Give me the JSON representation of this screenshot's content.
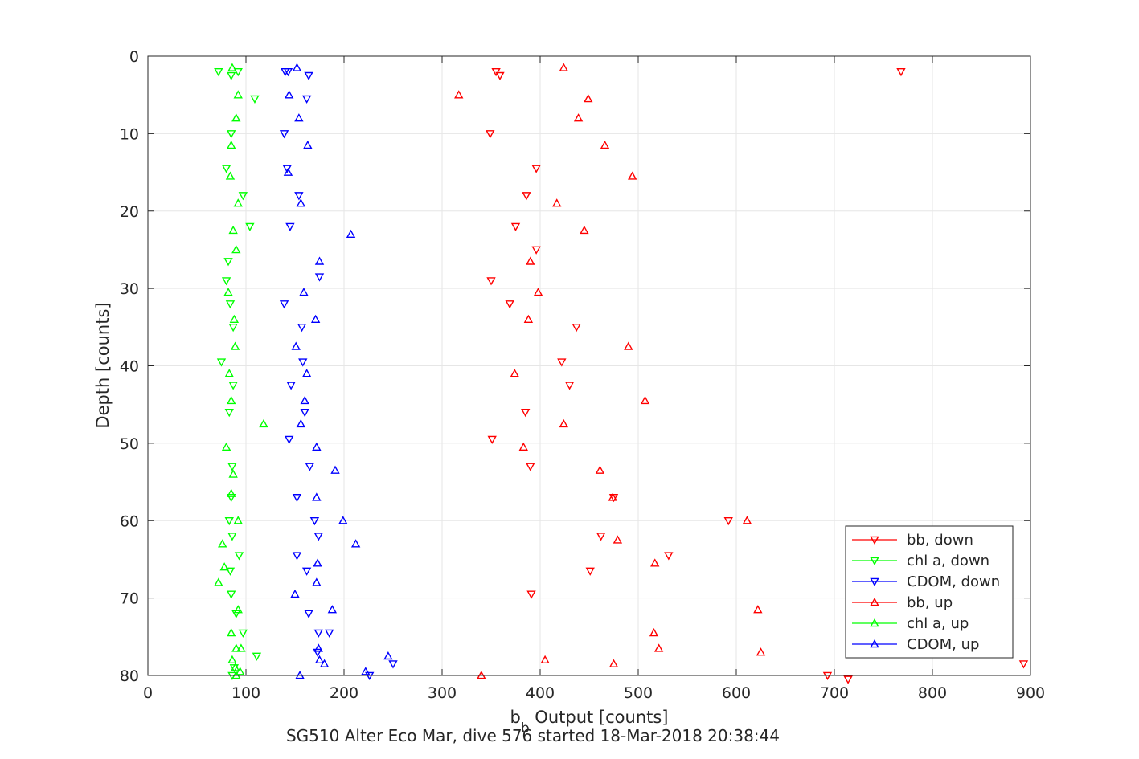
{
  "chart_data": {
    "type": "scatter",
    "title": "",
    "xlabel": "b",
    "xlabel_subscript": "b",
    "xlabel_suffix": " Output [counts]",
    "ylabel": "Depth [counts]",
    "caption": "SG510 Alter Eco Mar, dive 576 started 18-Mar-2018 20:38:44",
    "xlim": [
      0,
      900
    ],
    "ylim": [
      0,
      80
    ],
    "y_reversed": true,
    "grid": true,
    "xticks": [
      0,
      100,
      200,
      300,
      400,
      500,
      600,
      700,
      800,
      900
    ],
    "yticks": [
      0,
      10,
      20,
      30,
      40,
      50,
      60,
      70,
      80
    ],
    "legend_position": "bottom-right",
    "series": [
      {
        "name": "bb, down",
        "color": "#ff0000",
        "marker": "triangle-down",
        "points": [
          [
            355,
            2
          ],
          [
            359,
            2.5
          ],
          [
            768,
            2
          ],
          [
            349,
            10
          ],
          [
            396,
            14.5
          ],
          [
            386,
            18
          ],
          [
            375,
            22
          ],
          [
            396,
            25
          ],
          [
            350,
            29
          ],
          [
            369,
            32
          ],
          [
            437,
            35
          ],
          [
            422,
            39.5
          ],
          [
            430,
            42.5
          ],
          [
            385,
            46
          ],
          [
            351,
            49.5
          ],
          [
            390,
            53
          ],
          [
            475,
            57
          ],
          [
            592,
            60
          ],
          [
            462,
            62
          ],
          [
            531,
            64.5
          ],
          [
            451,
            66.5
          ],
          [
            391,
            69.5
          ],
          [
            693,
            80
          ],
          [
            714,
            80.5
          ],
          [
            893,
            78.5
          ]
        ]
      },
      {
        "name": "chl a, down",
        "color": "#00ff00",
        "marker": "triangle-down",
        "points": [
          [
            72,
            2
          ],
          [
            85,
            2.5
          ],
          [
            92,
            2
          ],
          [
            109,
            5.5
          ],
          [
            85,
            10
          ],
          [
            80,
            14.5
          ],
          [
            97,
            18
          ],
          [
            104,
            22
          ],
          [
            82,
            26.5
          ],
          [
            80,
            29
          ],
          [
            84,
            32
          ],
          [
            87,
            35
          ],
          [
            75,
            39.5
          ],
          [
            87,
            42.5
          ],
          [
            83,
            46
          ],
          [
            86,
            53
          ],
          [
            85,
            57
          ],
          [
            83,
            60
          ],
          [
            86,
            62
          ],
          [
            93,
            64.5
          ],
          [
            84,
            66.5
          ],
          [
            85,
            69.5
          ],
          [
            90,
            72
          ],
          [
            97,
            74.5
          ],
          [
            111,
            77.5
          ],
          [
            88,
            79
          ],
          [
            86,
            80
          ]
        ]
      },
      {
        "name": "CDOM, down",
        "color": "#0000ff",
        "marker": "triangle-down",
        "points": [
          [
            140,
            2
          ],
          [
            143,
            2
          ],
          [
            164,
            2.5
          ],
          [
            162,
            5.5
          ],
          [
            139,
            10
          ],
          [
            142,
            14.5
          ],
          [
            154,
            18
          ],
          [
            145,
            22
          ],
          [
            175,
            28.5
          ],
          [
            139,
            32
          ],
          [
            157,
            35
          ],
          [
            158,
            39.5
          ],
          [
            146,
            42.5
          ],
          [
            160,
            46
          ],
          [
            144,
            49.5
          ],
          [
            165,
            53
          ],
          [
            152,
            57
          ],
          [
            170,
            60
          ],
          [
            174,
            62
          ],
          [
            152,
            64.5
          ],
          [
            162,
            66.5
          ],
          [
            164,
            72
          ],
          [
            174,
            74.5
          ],
          [
            185,
            74.5
          ],
          [
            173,
            77
          ],
          [
            250,
            78.5
          ],
          [
            226,
            80
          ]
        ]
      },
      {
        "name": "bb, up",
        "color": "#ff0000",
        "marker": "triangle-up",
        "points": [
          [
            424,
            1.5
          ],
          [
            317,
            5
          ],
          [
            449,
            5.5
          ],
          [
            439,
            8
          ],
          [
            466,
            11.5
          ],
          [
            494,
            15.5
          ],
          [
            417,
            19
          ],
          [
            445,
            22.5
          ],
          [
            390,
            26.5
          ],
          [
            398,
            30.5
          ],
          [
            388,
            34
          ],
          [
            490,
            37.5
          ],
          [
            374,
            41
          ],
          [
            507,
            44.5
          ],
          [
            424,
            47.5
          ],
          [
            383,
            50.5
          ],
          [
            461,
            53.5
          ],
          [
            474,
            57
          ],
          [
            611,
            60
          ],
          [
            479,
            62.5
          ],
          [
            517,
            65.5
          ],
          [
            622,
            71.5
          ],
          [
            516,
            74.5
          ],
          [
            521,
            76.5
          ],
          [
            625,
            77
          ],
          [
            405,
            78
          ],
          [
            475,
            78.5
          ],
          [
            340,
            80
          ]
        ]
      },
      {
        "name": "chl a, up",
        "color": "#00ff00",
        "marker": "triangle-up",
        "points": [
          [
            86,
            1.5
          ],
          [
            92,
            5
          ],
          [
            90,
            8
          ],
          [
            85,
            11.5
          ],
          [
            84,
            15.5
          ],
          [
            92,
            19
          ],
          [
            87,
            22.5
          ],
          [
            90,
            25
          ],
          [
            82,
            30.5
          ],
          [
            88,
            34
          ],
          [
            89,
            37.5
          ],
          [
            83,
            41
          ],
          [
            85,
            44.5
          ],
          [
            118,
            47.5
          ],
          [
            80,
            50.5
          ],
          [
            87,
            54
          ],
          [
            85,
            56.5
          ],
          [
            92,
            60
          ],
          [
            76,
            63
          ],
          [
            78,
            66
          ],
          [
            72,
            68
          ],
          [
            92,
            71.5
          ],
          [
            85,
            74.5
          ],
          [
            95,
            76.5
          ],
          [
            90,
            76.5
          ],
          [
            86,
            78
          ],
          [
            89,
            79
          ],
          [
            94,
            79.5
          ],
          [
            90,
            80
          ]
        ]
      },
      {
        "name": "CDOM, up",
        "color": "#0000ff",
        "marker": "triangle-up",
        "points": [
          [
            152,
            1.5
          ],
          [
            144,
            5
          ],
          [
            154,
            8
          ],
          [
            163,
            11.5
          ],
          [
            143,
            15
          ],
          [
            156,
            19
          ],
          [
            207,
            23
          ],
          [
            175,
            26.5
          ],
          [
            159,
            30.5
          ],
          [
            171,
            34
          ],
          [
            151,
            37.5
          ],
          [
            162,
            41
          ],
          [
            160,
            44.5
          ],
          [
            156,
            47.5
          ],
          [
            172,
            50.5
          ],
          [
            191,
            53.5
          ],
          [
            172,
            57
          ],
          [
            199,
            60
          ],
          [
            212,
            63
          ],
          [
            173,
            65.5
          ],
          [
            172,
            68
          ],
          [
            150,
            69.5
          ],
          [
            188,
            71.5
          ],
          [
            174,
            76.5
          ],
          [
            175,
            78
          ],
          [
            245,
            77.5
          ],
          [
            180,
            78.5
          ],
          [
            222,
            79.5
          ],
          [
            155,
            80
          ]
        ]
      }
    ]
  }
}
